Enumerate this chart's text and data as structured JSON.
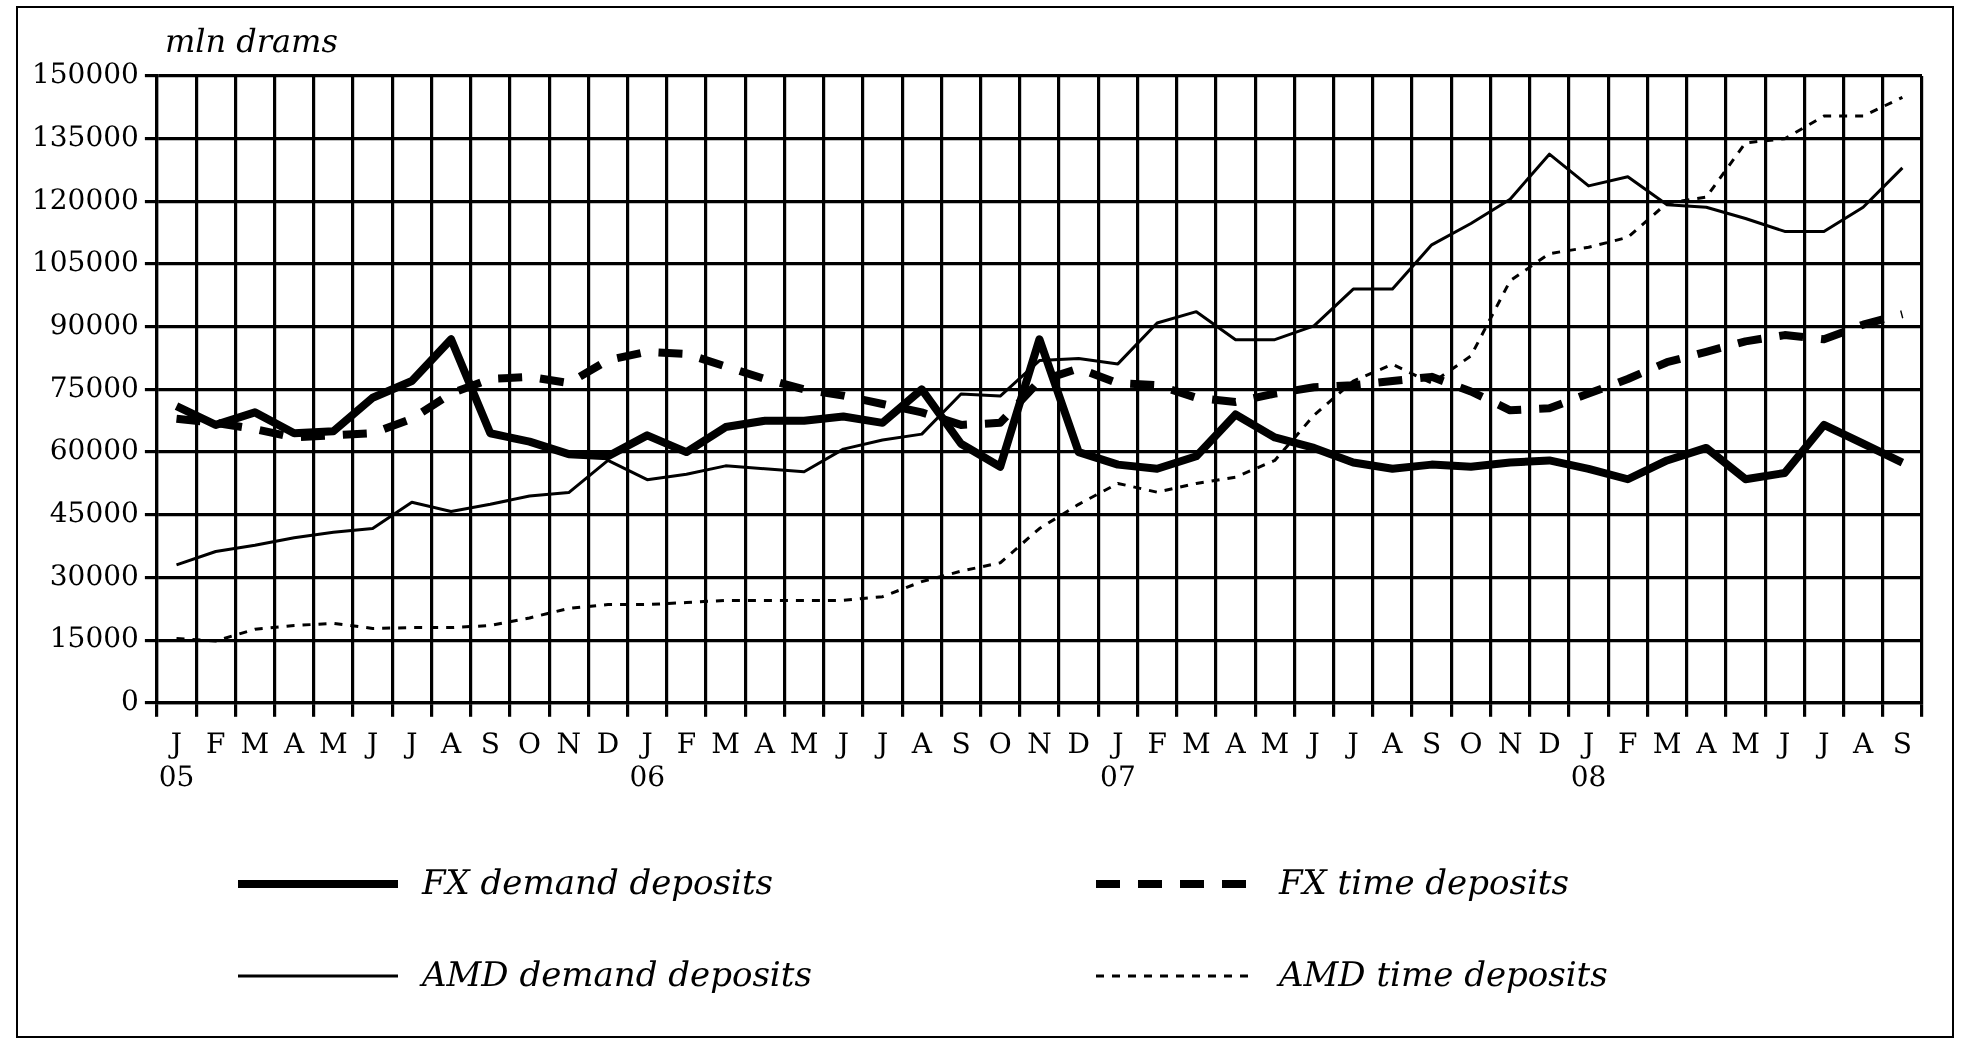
{
  "chart_data": {
    "type": "line",
    "ylabel": "mln drams",
    "categories": [
      "J\n05",
      "F",
      "M",
      "A",
      "M",
      "J",
      "J",
      "A",
      "S",
      "O",
      "N",
      "D",
      "J\n06",
      "F",
      "M",
      "A",
      "M",
      "J",
      "J",
      "A",
      "S",
      "O",
      "N",
      "D",
      "J\n07",
      "F",
      "M",
      "A",
      "M",
      "J",
      "J",
      "A",
      "S",
      "O",
      "N",
      "D",
      "J\n08",
      "F",
      "M",
      "A",
      "M",
      "J",
      "J",
      "A",
      "S"
    ],
    "series": [
      {
        "name": "FX demand deposits",
        "color": "#000000",
        "line_style": "solid",
        "values": [
          71000,
          66500,
          69500,
          64500,
          65000,
          73000,
          77000,
          87000,
          64500,
          62500,
          59500,
          59000,
          64000,
          60000,
          66000,
          67500,
          67500,
          68500,
          67000,
          75000,
          62000,
          56500,
          87000,
          60000,
          57000,
          56000,
          59000,
          69000,
          63500,
          61000,
          57500,
          56000,
          57000,
          56500,
          57500,
          58000,
          56000,
          53500,
          58000,
          61000,
          53500,
          55000,
          66500,
          62000,
          57500
        ]
      },
      {
        "name": "FX time deposits",
        "color": "#000000",
        "line_style": "dashed",
        "values": [
          68000,
          67000,
          65500,
          63500,
          64000,
          64500,
          68000,
          74000,
          77500,
          78000,
          76500,
          82000,
          84000,
          83500,
          80500,
          77500,
          75000,
          73500,
          71500,
          69500,
          66500,
          67000,
          77000,
          80000,
          76500,
          76000,
          73000,
          72000,
          74000,
          75500,
          76000,
          77000,
          78000,
          74500,
          70000,
          70500,
          74000,
          77500,
          81500,
          84000,
          86500,
          88000,
          87000,
          90500,
          93000
        ]
      },
      {
        "name": "AMD demand deposits",
        "color": "#000000",
        "line_style": "solid",
        "values": [
          33000,
          36200,
          37700,
          39500,
          40800,
          41700,
          48000,
          45800,
          47500,
          49500,
          50300,
          58000,
          53400,
          54700,
          56700,
          56000,
          55300,
          60700,
          62900,
          64300,
          73900,
          73400,
          81900,
          82400,
          81100,
          90900,
          93600,
          86900,
          86900,
          90200,
          99000,
          99000,
          109600,
          114700,
          120500,
          131300,
          123700,
          125900,
          119200,
          118600,
          115900,
          112800,
          112800,
          118600,
          128000
        ]
      },
      {
        "name": "AMD time deposits",
        "color": "#000000",
        "line_style": "dotted",
        "values": [
          15400,
          14800,
          17600,
          18500,
          19000,
          17800,
          18000,
          18000,
          18500,
          20300,
          22600,
          23500,
          23500,
          24000,
          24500,
          24500,
          24500,
          24500,
          25400,
          29000,
          31500,
          33500,
          41700,
          47500,
          52500,
          50400,
          52500,
          54000,
          58000,
          68800,
          77000,
          81000,
          76500,
          83000,
          101000,
          107500,
          109000,
          111400,
          119600,
          121000,
          134000,
          135000,
          140400,
          140400,
          144900
        ]
      }
    ],
    "ylim": [
      0,
      150000
    ],
    "yticks": [
      0,
      15000,
      30000,
      45000,
      60000,
      75000,
      90000,
      105000,
      120000,
      135000,
      150000
    ],
    "grid": true,
    "legend": "bottom"
  }
}
